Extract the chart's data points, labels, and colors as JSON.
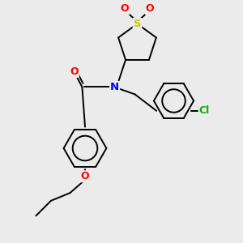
{
  "bg_color": "#ebebeb",
  "S_color": "#c8c800",
  "N_color": "#0000ff",
  "O_color": "#ff0000",
  "Cl_color": "#00b400",
  "bond_color": "#000000",
  "lw": 1.4,
  "xlim": [
    0,
    10
  ],
  "ylim": [
    0,
    10
  ]
}
